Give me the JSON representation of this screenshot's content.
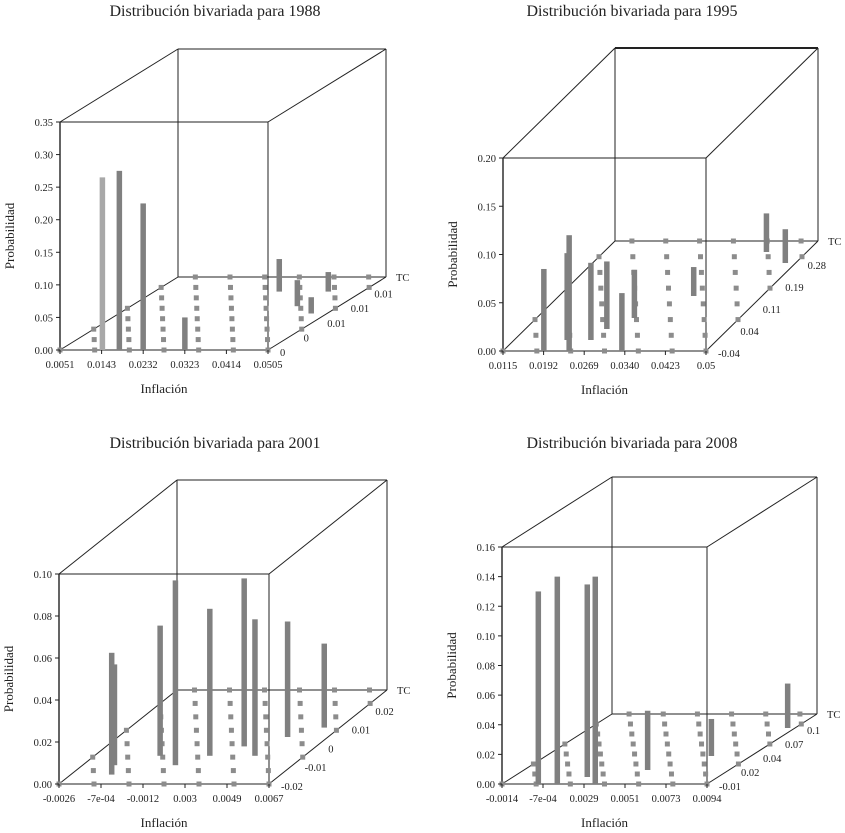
{
  "chart_data": [
    {
      "type": "bar3d",
      "title": "Distribución bivariada para 1988",
      "xlabel": "Inflación",
      "ylabel": "Probabilidad",
      "zlabel": "TC",
      "x_ticks": [
        "0.0051",
        "0.0143",
        "0.0232",
        "0.0323",
        "0.0414",
        "0.0505"
      ],
      "y_ticks": [
        "0.00",
        "0.05",
        "0.10",
        "0.15",
        "0.20",
        "0.25",
        "0.30",
        "0.35"
      ],
      "z_ticks": [
        "0",
        "0",
        "0.01",
        "0.01",
        "0.01"
      ],
      "ylim": [
        0,
        0.35
      ],
      "bars": [
        {
          "x": 0.0143,
          "depth": 0.0,
          "value": 0.265,
          "highlight": true
        },
        {
          "x": 0.018,
          "depth": 0.0,
          "value": 0.275
        },
        {
          "x": 0.0232,
          "depth": 0.0,
          "value": 0.225
        },
        {
          "x": 0.0323,
          "depth": 0.0,
          "value": 0.05
        },
        {
          "x": 0.0323,
          "depth": 0.8,
          "value": 0.05
        },
        {
          "x": 0.0414,
          "depth": 0.6,
          "value": 0.04
        },
        {
          "x": 0.043,
          "depth": 0.8,
          "value": 0.03
        },
        {
          "x": 0.047,
          "depth": 0.5,
          "value": 0.025
        }
      ]
    },
    {
      "type": "bar3d",
      "title": "Distribución bivariada para 1995",
      "xlabel": "Inflación",
      "ylabel": "Probabilidad",
      "zlabel": "TC",
      "x_ticks": [
        "0.0115",
        "0.0192",
        "0.0269",
        "0.0340",
        "0.0423",
        "0.05"
      ],
      "y_ticks": [
        "0.00",
        "0.05",
        "0.10",
        "0.15",
        "0.20"
      ],
      "z_ticks": [
        "-0.04",
        "0.04",
        "0.11",
        "0.19",
        "0.28"
      ],
      "ylim": [
        0,
        0.2
      ],
      "bars": [
        {
          "x": 0.0192,
          "depth": 0.0,
          "value": 0.085
        },
        {
          "x": 0.0215,
          "depth": 0.1,
          "value": 0.09
        },
        {
          "x": 0.024,
          "depth": 0.0,
          "value": 0.12
        },
        {
          "x": 0.026,
          "depth": 0.1,
          "value": 0.08
        },
        {
          "x": 0.0269,
          "depth": 0.2,
          "value": 0.07
        },
        {
          "x": 0.03,
          "depth": 0.3,
          "value": 0.05
        },
        {
          "x": 0.034,
          "depth": 0.0,
          "value": 0.06
        },
        {
          "x": 0.037,
          "depth": 0.5,
          "value": 0.03
        },
        {
          "x": 0.0423,
          "depth": 0.9,
          "value": 0.04
        },
        {
          "x": 0.048,
          "depth": 0.8,
          "value": 0.035
        }
      ]
    },
    {
      "type": "bar3d",
      "title": "Distribución bivariada para 2001",
      "xlabel": "Inflación",
      "ylabel": "Probabilidad",
      "zlabel": "TC",
      "x_ticks": [
        "-0.0026",
        "-7e-04",
        "-0.0012",
        "0.003",
        "0.0049",
        "0.0067"
      ],
      "y_ticks": [
        "0.00",
        "0.02",
        "0.04",
        "0.06",
        "0.08",
        "0.10"
      ],
      "z_ticks": [
        "-0.02",
        "-0.01",
        "0",
        "0.01",
        "0.02"
      ],
      "ylim": [
        0,
        0.1
      ],
      "bars": [
        {
          "x": -0.0012,
          "depth": 0.2,
          "value": 0.048
        },
        {
          "x": -0.0008,
          "depth": 0.1,
          "value": 0.058
        },
        {
          "x": 0.0003,
          "depth": 0.3,
          "value": 0.062
        },
        {
          "x": 0.0015,
          "depth": 0.2,
          "value": 0.088
        },
        {
          "x": 0.0025,
          "depth": 0.3,
          "value": 0.07
        },
        {
          "x": 0.0035,
          "depth": 0.4,
          "value": 0.08
        },
        {
          "x": 0.0045,
          "depth": 0.3,
          "value": 0.065
        },
        {
          "x": 0.0049,
          "depth": 0.5,
          "value": 0.055
        },
        {
          "x": 0.006,
          "depth": 0.6,
          "value": 0.04
        }
      ]
    },
    {
      "type": "bar3d",
      "title": "Distribución bivariada para 2008",
      "xlabel": "Inflación",
      "ylabel": "Probabilidad",
      "zlabel": "TC",
      "x_ticks": [
        "-0.0014",
        "-7e-04",
        "0.0029",
        "0.0051",
        "0.0073",
        "0.0094"
      ],
      "y_ticks": [
        "0.00",
        "0.02",
        "0.04",
        "0.06",
        "0.08",
        "0.10",
        "0.12",
        "0.14",
        "0.16"
      ],
      "z_ticks": [
        "-0.01",
        "0.02",
        "0.04",
        "0.07",
        "0.1"
      ],
      "ylim": [
        0,
        0.16
      ],
      "bars": [
        {
          "x": 0.0005,
          "depth": 0.0,
          "value": 0.13
        },
        {
          "x": 0.0015,
          "depth": 0.0,
          "value": 0.14
        },
        {
          "x": 0.0025,
          "depth": 0.1,
          "value": 0.13
        },
        {
          "x": 0.0035,
          "depth": 0.0,
          "value": 0.14
        },
        {
          "x": 0.0051,
          "depth": 0.2,
          "value": 0.04
        },
        {
          "x": 0.0073,
          "depth": 0.4,
          "value": 0.025
        },
        {
          "x": 0.009,
          "depth": 0.8,
          "value": 0.03
        }
      ]
    }
  ],
  "colors": {
    "bar": "#808080",
    "bar_highlight": "#a8a8a8",
    "floor_marker": "#8c8c8c",
    "frame": "#222222"
  }
}
